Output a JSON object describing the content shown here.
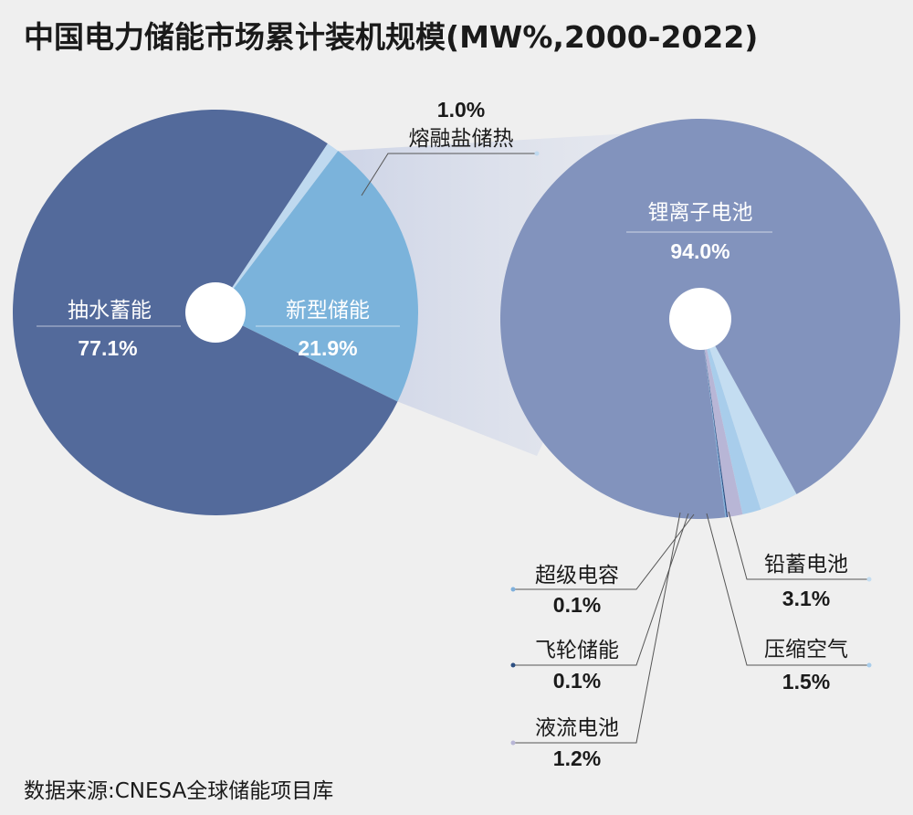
{
  "title": "中国电力储能市场累计装机规模(MW%,2000-2022)",
  "source": "数据来源:CNESA全球储能项目库",
  "chart_data": [
    {
      "type": "pie",
      "slices": [
        {
          "label": "抽水蓄能",
          "value": 77.1,
          "value_text": "77.1%",
          "color": "#536a9b"
        },
        {
          "label": "新型储能",
          "value": 21.9,
          "value_text": "21.9%",
          "color": "#7bb3db"
        },
        {
          "label": "熔融盐储热",
          "value": 1.0,
          "value_text": "1.0%",
          "color": "#bfd9ef"
        }
      ]
    },
    {
      "type": "pie",
      "slices": [
        {
          "label": "锂离子电池",
          "value": 94.0,
          "value_text": "94.0%",
          "color": "#8293bd"
        },
        {
          "label": "铅蓄电池",
          "value": 3.1,
          "value_text": "3.1%",
          "color": "#c4ddf1"
        },
        {
          "label": "压缩空气",
          "value": 1.5,
          "value_text": "1.5%",
          "color": "#a8cdeb"
        },
        {
          "label": "液流电池",
          "value": 1.2,
          "value_text": "1.2%",
          "color": "#b8b6d6"
        },
        {
          "label": "飞轮储能",
          "value": 0.1,
          "value_text": "0.1%",
          "color": "#2c4f82"
        },
        {
          "label": "超级电容",
          "value": 0.1,
          "value_text": "0.1%",
          "color": "#7fb0dc"
        }
      ]
    }
  ]
}
